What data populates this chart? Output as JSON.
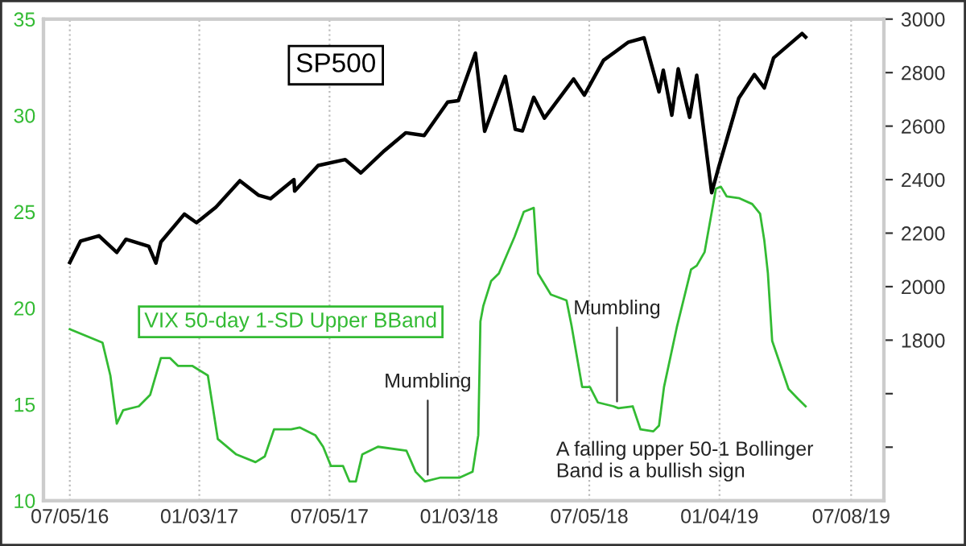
{
  "chart_data": {
    "type": "line",
    "xlim": [
      "2016-05-29",
      "2019-08-23"
    ],
    "xticks": [
      {
        "value": "2016-07-05",
        "label": "07/05/16"
      },
      {
        "value": "2017-01-03",
        "label": "01/03/17"
      },
      {
        "value": "2017-07-05",
        "label": "07/05/17"
      },
      {
        "value": "2018-01-03",
        "label": "01/03/18"
      },
      {
        "value": "2018-07-05",
        "label": "07/05/18"
      },
      {
        "value": "2019-01-04",
        "label": "01/04/19"
      },
      {
        "value": "2019-07-08",
        "label": "07/08/19"
      }
    ],
    "ylim": [
      10,
      35
    ],
    "yticks": [
      10,
      15,
      20,
      25,
      30,
      35
    ],
    "y2lim": [
      1200,
      3000
    ],
    "y2ticks": [
      {
        "value": 1400,
        "label": null
      },
      {
        "value": 1600,
        "label": null
      },
      1800,
      2000,
      2200,
      2400,
      2600,
      2800,
      3000
    ],
    "grid": "x",
    "legend": false,
    "series": [
      {
        "name": "SP500",
        "color": "#000000",
        "axis": "y2",
        "x": [
          "2016-07-05",
          "2016-07-20",
          "2016-08-15",
          "2016-09-09",
          "2016-09-22",
          "2016-10-24",
          "2016-11-03",
          "2016-11-10",
          "2016-12-13",
          "2016-12-30",
          "2017-01-26",
          "2017-03-01",
          "2017-03-27",
          "2017-04-13",
          "2017-05-16",
          "2017-05-17",
          "2017-06-19",
          "2017-07-27",
          "2017-08-18",
          "2017-09-20",
          "2017-10-20",
          "2017-11-15",
          "2017-12-18",
          "2018-01-02",
          "2018-01-26",
          "2018-02-08",
          "2018-03-09",
          "2018-03-23",
          "2018-04-02",
          "2018-04-18",
          "2018-05-03",
          "2018-06-13",
          "2018-06-28",
          "2018-07-25",
          "2018-08-29",
          "2018-09-20",
          "2018-10-11",
          "2018-10-17",
          "2018-10-29",
          "2018-11-07",
          "2018-11-23",
          "2018-12-03",
          "2018-12-24",
          "2019-01-03",
          "2019-01-31",
          "2019-02-22",
          "2019-03-08",
          "2019-03-21",
          "2019-04-30",
          "2019-05-05"
        ],
        "values": [
          2090,
          2170,
          2190,
          2128,
          2177,
          2151,
          2088,
          2167,
          2271,
          2239,
          2296,
          2396,
          2342,
          2329,
          2400,
          2357,
          2453,
          2475,
          2425,
          2508,
          2575,
          2565,
          2690,
          2695,
          2873,
          2581,
          2786,
          2588,
          2582,
          2708,
          2630,
          2776,
          2716,
          2846,
          2914,
          2930,
          2728,
          2809,
          2641,
          2814,
          2633,
          2790,
          2351,
          2448,
          2704,
          2793,
          2743,
          2855,
          2946,
          2933
        ]
      },
      {
        "name": "VIX 50-day 1-SD Upper BBand",
        "color": "#33bb33",
        "x": [
          "2016-07-05",
          "2016-08-20",
          "2016-08-31",
          "2016-09-09",
          "2016-09-18",
          "2016-10-10",
          "2016-10-26",
          "2016-11-10",
          "2016-11-23",
          "2016-12-04",
          "2016-12-24",
          "2017-01-15",
          "2017-01-29",
          "2017-02-24",
          "2017-03-23",
          "2017-04-05",
          "2017-04-18",
          "2017-05-12",
          "2017-05-24",
          "2017-06-15",
          "2017-06-26",
          "2017-07-07",
          "2017-07-24",
          "2017-08-02",
          "2017-08-11",
          "2017-08-20",
          "2017-09-11",
          "2017-10-21",
          "2017-11-03",
          "2017-11-16",
          "2017-12-08",
          "2018-01-04",
          "2018-01-22",
          "2018-01-30",
          "2018-02-02",
          "2018-02-06",
          "2018-02-17",
          "2018-02-28",
          "2018-03-22",
          "2018-04-04",
          "2018-04-18",
          "2018-04-24",
          "2018-05-12",
          "2018-06-03",
          "2018-06-10",
          "2018-06-25",
          "2018-07-06",
          "2018-07-17",
          "2018-08-08",
          "2018-08-15",
          "2018-09-04",
          "2018-09-15",
          "2018-10-03",
          "2018-10-11",
          "2018-10-18",
          "2018-11-05",
          "2018-11-25",
          "2018-12-03",
          "2018-12-14",
          "2018-12-30",
          "2019-01-06",
          "2019-01-14",
          "2019-02-01",
          "2019-02-19",
          "2019-03-02",
          "2019-03-08",
          "2019-03-13",
          "2019-03-19",
          "2019-03-31",
          "2019-04-11",
          "2019-04-24",
          "2019-05-05"
        ],
        "values": [
          18.9,
          18.2,
          16.5,
          14.0,
          14.7,
          14.9,
          15.5,
          17.4,
          17.4,
          17.0,
          17.0,
          16.5,
          13.2,
          12.4,
          12.0,
          12.3,
          13.7,
          13.7,
          13.8,
          13.4,
          12.8,
          11.8,
          11.8,
          11.0,
          11.0,
          12.4,
          12.8,
          12.6,
          11.5,
          11.0,
          11.2,
          11.2,
          11.5,
          13.4,
          19.3,
          20.1,
          21.4,
          21.8,
          23.7,
          25.0,
          25.2,
          21.8,
          20.7,
          20.4,
          19.1,
          15.9,
          15.9,
          15.1,
          14.9,
          14.8,
          14.9,
          13.7,
          13.6,
          13.9,
          15.9,
          19.0,
          22.0,
          22.2,
          22.9,
          26.2,
          26.3,
          25.8,
          25.7,
          25.4,
          24.9,
          23.5,
          21.8,
          18.3,
          17.0,
          15.8,
          15.3,
          14.9
        ]
      }
    ],
    "annotations": [
      {
        "text": "Mumbling",
        "x": "2017-11-20",
        "y": 11.0
      },
      {
        "text": "Mumbling",
        "x": "2018-08-13",
        "y": 14.8
      },
      "A falling upper 50-1 Bollinger\nBand is a bullish sign"
    ]
  }
}
